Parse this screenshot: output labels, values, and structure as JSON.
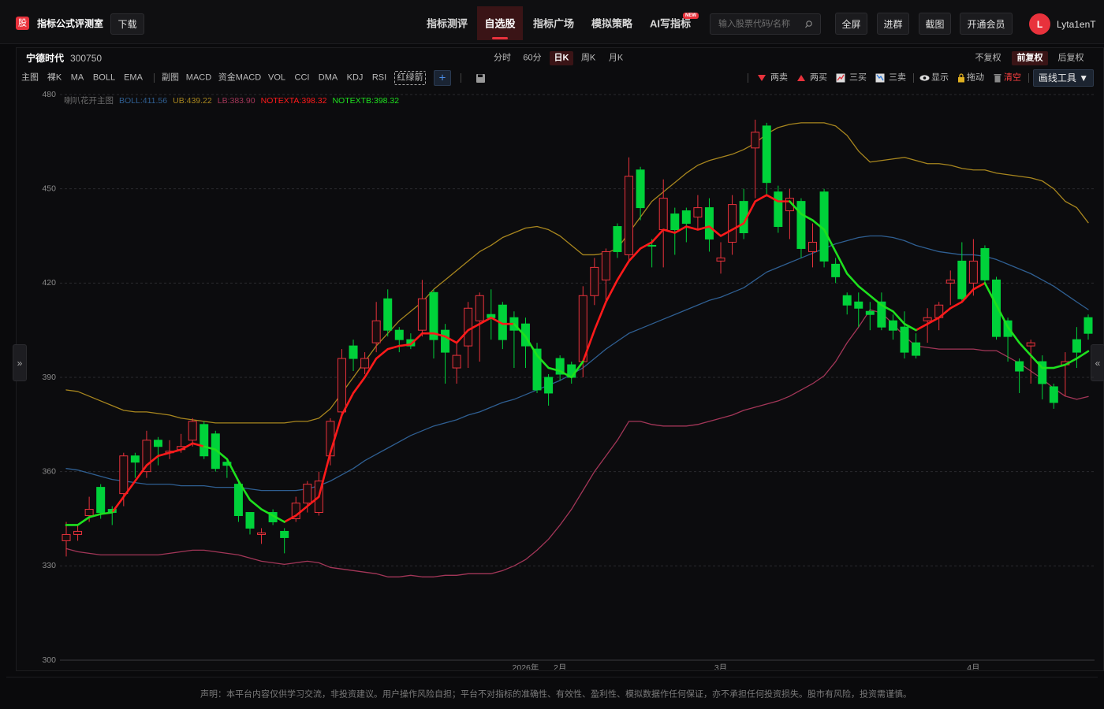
{
  "header": {
    "logo": "股",
    "app_name": "指标公式评测室",
    "download": "下载",
    "nav": [
      "指标测评",
      "自选股",
      "指标广场",
      "模拟策略",
      "AI写指标"
    ],
    "nav_active": 1,
    "new_badge": "NEW",
    "search_placeholder": "输入股票代码/名称",
    "buttons": [
      "全屏",
      "进群",
      "截图",
      "开通会员"
    ],
    "avatar": "L",
    "username": "Lyta1enT"
  },
  "toolbar": {
    "stock_name": "宁德时代",
    "stock_code": "300750",
    "periods": [
      "分时",
      "60分",
      "日K",
      "周K",
      "月K"
    ],
    "period_active": 2,
    "adjust": [
      "不复权",
      "前复权",
      "后复权"
    ],
    "adjust_active": 1,
    "main_label": "主图",
    "main_indicators": [
      "裸K",
      "MA",
      "BOLL",
      "EMA"
    ],
    "sub_label": "副图",
    "sub_indicators": [
      "MACD",
      "资金MACD",
      "VOL",
      "CCI",
      "DMA",
      "KDJ",
      "RSI",
      "红绿箭"
    ],
    "sub_active": 7,
    "add": "+",
    "signals": [
      "两卖",
      "两买",
      "三买",
      "三卖"
    ],
    "show": "显示",
    "drag": "拖动",
    "clear": "清空",
    "draw_tools": "画线工具 ▼"
  },
  "side": {
    "left": "»",
    "right": "«"
  },
  "footer": "声明：本平台内容仅供学习交流，非投资建议。用户操作风险自担；平台不对指标的准确性、有效性、盈利性、模拟数据作任何保证，亦不承担任何投资损失。股市有风险，投资需谨慎。",
  "chart_data": {
    "type": "candlestick",
    "title": "喇叭花开主图",
    "categories": [
      null,
      null,
      null,
      null,
      null,
      null,
      null,
      null,
      null,
      null,
      null,
      null,
      null,
      null,
      null,
      null,
      null,
      null,
      null,
      null,
      null,
      null,
      null,
      null,
      null,
      null,
      null,
      null,
      null,
      null,
      null,
      null,
      null,
      null,
      null,
      null,
      null,
      null,
      null,
      null,
      "2026年",
      null,
      null,
      "2月",
      null,
      null,
      null,
      null,
      null,
      null,
      null,
      null,
      null,
      null,
      null,
      null,
      null,
      "3月",
      null,
      null,
      null,
      null,
      null,
      null,
      null,
      null,
      null,
      null,
      null,
      null,
      null,
      null,
      null,
      null,
      null,
      null,
      null,
      null,
      null,
      "4月",
      null,
      null,
      null,
      null,
      null,
      null,
      null,
      null,
      null,
      null
    ],
    "candles": {
      "up_color": "#e8323c",
      "down_color": "#00d23a",
      "open": [
        338,
        340,
        346,
        355,
        348,
        353,
        365,
        360,
        370,
        366,
        367,
        370,
        375,
        372,
        363,
        356,
        347,
        340,
        347,
        341,
        345,
        350,
        347,
        365,
        379,
        400,
        393,
        401,
        415,
        405,
        402,
        405,
        417,
        405,
        393,
        400,
        408,
        410,
        413,
        409,
        407,
        399,
        390,
        396,
        394,
        395,
        416,
        421,
        438,
        429,
        456,
        432,
        437,
        442,
        443,
        441,
        444,
        427,
        433,
        446,
        463,
        470,
        449,
        443,
        446,
        430,
        449,
        426,
        416,
        414,
        411,
        414,
        408,
        406,
        401,
        408,
        409,
        420,
        427,
        420,
        431,
        421,
        408,
        395,
        400,
        395,
        387,
        394,
        402,
        409
      ],
      "high": [
        344,
        343,
        352,
        356,
        349,
        366,
        366,
        373,
        371,
        370,
        372,
        377,
        376,
        373,
        364,
        357,
        347,
        342,
        348,
        342,
        352,
        357,
        360,
        377,
        399,
        402,
        398,
        414,
        418,
        406,
        404,
        421,
        418,
        407,
        401,
        414,
        417,
        418,
        414,
        411,
        409,
        401,
        391,
        397,
        395,
        419,
        428,
        431,
        439,
        460,
        457,
        434,
        453,
        444,
        444,
        448,
        447,
        433,
        448,
        450,
        472,
        471,
        451,
        450,
        447,
        439,
        450,
        428,
        417,
        417,
        414,
        417,
        410,
        411,
        404,
        412,
        414,
        424,
        433,
        434,
        432,
        422,
        409,
        396,
        402,
        397,
        388,
        398,
        406,
        410
      ],
      "low": [
        333,
        338,
        344,
        345,
        343,
        349,
        358,
        358,
        362,
        364,
        366,
        368,
        364,
        360,
        358,
        344,
        340,
        337,
        343,
        334,
        344,
        347,
        346,
        362,
        378,
        392,
        391,
        398,
        403,
        398,
        399,
        403,
        396,
        388,
        388,
        393,
        395,
        402,
        399,
        393,
        393,
        385,
        381,
        389,
        388,
        390,
        413,
        414,
        428,
        427,
        440,
        425,
        425,
        429,
        433,
        437,
        430,
        423,
        429,
        434,
        447,
        448,
        436,
        434,
        428,
        425,
        425,
        420,
        410,
        406,
        405,
        405,
        402,
        396,
        396,
        401,
        405,
        413,
        414,
        416,
        420,
        402,
        395,
        385,
        388,
        383,
        380,
        384,
        393,
        402
      ],
      "close": [
        340,
        341,
        348,
        347,
        347,
        365,
        363,
        370,
        368,
        366.5,
        368,
        376,
        365,
        361,
        362,
        346,
        342,
        340.5,
        344,
        339,
        350,
        356,
        357,
        376,
        396,
        396,
        396,
        408,
        405,
        402,
        400,
        415,
        402,
        398,
        397,
        412,
        416,
        409,
        402,
        405,
        400,
        386,
        385,
        391,
        390,
        416,
        425,
        430,
        430,
        454,
        444,
        432,
        447,
        437,
        439,
        444,
        434,
        428,
        445,
        436,
        468,
        452,
        438,
        447,
        431,
        433,
        427,
        422,
        413,
        412,
        410,
        406,
        405,
        398,
        397,
        409,
        413,
        421,
        415,
        427,
        421,
        403,
        403,
        392,
        401,
        388,
        382,
        395,
        398,
        404
      ]
    },
    "series": [
      {
        "name": "BOLL:411.56",
        "color": "#2f5f92",
        "width": 1.3,
        "values": [
          361,
          360.5,
          359.5,
          358.5,
          357.5,
          357,
          356.5,
          356,
          356,
          356,
          355.5,
          355.5,
          355.5,
          355,
          355,
          355,
          354.5,
          354,
          354,
          354,
          354,
          354.5,
          355.5,
          357,
          359,
          361,
          363.5,
          365.5,
          367.5,
          369.5,
          371.5,
          373,
          374.5,
          375.5,
          376.5,
          378,
          379,
          380.5,
          382,
          383,
          384.5,
          386,
          387.5,
          389,
          391,
          393,
          396,
          399,
          401.5,
          404,
          405.5,
          407,
          408.5,
          410,
          411.5,
          413,
          414.5,
          415.5,
          417,
          418.5,
          421,
          423.5,
          425,
          426.5,
          428,
          429.5,
          431,
          432.5,
          433.5,
          434.5,
          435,
          435,
          434.5,
          433.5,
          432,
          431,
          430,
          429.5,
          429,
          429,
          428.5,
          427.5,
          426,
          424.5,
          423,
          421,
          419,
          416.5,
          414,
          411.56
        ]
      },
      {
        "name": "UB:439.22",
        "color": "#a8861e",
        "width": 1.3,
        "values": [
          386,
          385.5,
          384,
          382.5,
          381,
          379.5,
          379,
          379,
          378.5,
          378,
          377,
          376.5,
          376,
          375.5,
          375.5,
          375.5,
          375.5,
          375.5,
          375.5,
          375.5,
          376,
          376,
          377,
          380,
          385,
          390,
          395,
          400,
          404,
          408,
          411,
          414,
          418,
          421,
          424,
          427,
          430,
          432,
          434.5,
          436,
          437.5,
          438,
          437,
          435,
          432,
          429,
          429,
          429.5,
          431,
          436,
          441,
          446,
          449,
          452,
          455,
          457.5,
          459,
          460,
          461,
          462.5,
          464.5,
          467.5,
          469.5,
          470.5,
          471,
          471,
          471,
          470,
          467,
          462,
          458.5,
          459,
          459.5,
          460,
          459,
          458,
          458,
          457.5,
          456.5,
          456,
          456,
          455,
          454.5,
          454,
          453.5,
          452.5,
          450,
          446,
          444,
          439.22
        ]
      },
      {
        "name": "LB:383.90",
        "color": "#a33658",
        "width": 1.3,
        "values": [
          335.5,
          334.5,
          334,
          333.5,
          333.5,
          333.5,
          333.5,
          333.5,
          333.5,
          334,
          334.5,
          335,
          335,
          334.5,
          334,
          333.5,
          332.5,
          331.5,
          331,
          330.5,
          331,
          331.5,
          331,
          329.5,
          329,
          328.5,
          328,
          327.5,
          326.5,
          326.5,
          327,
          326.5,
          326.5,
          327,
          327,
          327.5,
          327.5,
          327.5,
          328.5,
          330,
          332,
          335,
          338.5,
          343,
          348,
          354,
          360,
          365,
          370,
          376,
          376,
          375,
          374.5,
          374.5,
          374.5,
          375,
          376,
          377,
          378,
          379.5,
          380.5,
          381.5,
          382.5,
          384,
          386,
          388,
          390.5,
          395,
          401,
          406,
          411.5,
          410.5,
          407,
          403,
          400,
          399.5,
          399,
          399,
          399,
          399,
          398.5,
          398.5,
          396.5,
          394.5,
          392,
          389.5,
          386.5,
          384,
          383,
          383.9
        ]
      },
      {
        "name": "NOTEXTA:398.32",
        "color": "#ff1a1a",
        "width": 2.6,
        "values": [
          null,
          null,
          null,
          null,
          347,
          352,
          357,
          362,
          365,
          366,
          367,
          369,
          368,
          null,
          null,
          null,
          null,
          null,
          null,
          344,
          346,
          349,
          352,
          366,
          378,
          385,
          390,
          396,
          399,
          400,
          400.5,
          404,
          404,
          403,
          401,
          405,
          407,
          409,
          407,
          407,
          null,
          null,
          null,
          null,
          null,
          395,
          405,
          414,
          421,
          427,
          431,
          433,
          437,
          436,
          438,
          437,
          438,
          435,
          437,
          439,
          446,
          448,
          446,
          446,
          null,
          null,
          null,
          null,
          null,
          null,
          null,
          null,
          null,
          null,
          405,
          407,
          409,
          412,
          414,
          418,
          420,
          null,
          null,
          null,
          null,
          null,
          null,
          null,
          null,
          null
        ]
      },
      {
        "name": "NOTEXTB:398.32",
        "color": "#1ee01e",
        "width": 2.6,
        "values": [
          343,
          343,
          345.5,
          346.5,
          347,
          null,
          null,
          null,
          null,
          null,
          null,
          null,
          368,
          367,
          364,
          357,
          351,
          348,
          346,
          344,
          null,
          null,
          null,
          null,
          null,
          null,
          null,
          null,
          null,
          null,
          null,
          null,
          null,
          null,
          null,
          null,
          null,
          null,
          null,
          407,
          403,
          397,
          393,
          392,
          390,
          395,
          null,
          null,
          null,
          null,
          null,
          null,
          null,
          null,
          null,
          null,
          null,
          null,
          null,
          null,
          null,
          null,
          null,
          446,
          442,
          440,
          437,
          430,
          423,
          419,
          416,
          413,
          411,
          407,
          405,
          null,
          null,
          null,
          null,
          null,
          420,
          413,
          406,
          401,
          397,
          393,
          393,
          394,
          396,
          398.32
        ]
      }
    ],
    "overlay_series": [
      3,
      4
    ],
    "ylim": [
      300,
      480
    ],
    "yticks": [
      300,
      330,
      360,
      390,
      420,
      450,
      480
    ],
    "grid": true
  }
}
